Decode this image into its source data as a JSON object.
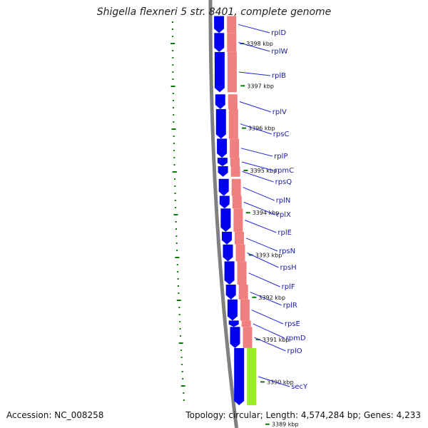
{
  "title": "Shigella flexneri 5 str. 8401, complete genome",
  "footer": {
    "accession": "Accession: NC_008258",
    "summary": "Topology: circular; Length: 4,574,284 bp; Genes: 4,233"
  },
  "colors": {
    "cds": "#0000ee",
    "gene_bar": "#f08080",
    "gene_bar_highlight": "#99ee22",
    "backbone": "#808080",
    "tick": "#0a7a0a",
    "label": "#1a1aa8",
    "leader": "#2222dd"
  },
  "ticks": [
    {
      "label": "3398 kbp",
      "kbp": 3398
    },
    {
      "label": "3397 kbp",
      "kbp": 3397
    },
    {
      "label": "3396 kbp",
      "kbp": 3396
    },
    {
      "label": "3395 kbp",
      "kbp": 3395
    },
    {
      "label": "3394 kbp",
      "kbp": 3394
    },
    {
      "label": "3393 kbp",
      "kbp": 3393
    },
    {
      "label": "3392 kbp",
      "kbp": 3392
    },
    {
      "label": "3391 kbp",
      "kbp": 3391
    },
    {
      "label": "3390 kbp",
      "kbp": 3390
    },
    {
      "label": "3389 kbp",
      "kbp": 3389
    }
  ],
  "genes": [
    {
      "name": "rplD",
      "start_kbp": 3398.65,
      "end_kbp": 3398.25
    },
    {
      "name": "rplW",
      "start_kbp": 3398.25,
      "end_kbp": 3397.8
    },
    {
      "name": "rplB",
      "start_kbp": 3397.8,
      "end_kbp": 3396.85
    },
    {
      "name": "rplV",
      "start_kbp": 3396.8,
      "end_kbp": 3396.45
    },
    {
      "name": "rpsC",
      "start_kbp": 3396.45,
      "end_kbp": 3395.75
    },
    {
      "name": "rplP",
      "start_kbp": 3395.75,
      "end_kbp": 3395.3
    },
    {
      "name": "rpmC",
      "start_kbp": 3395.3,
      "end_kbp": 3395.1
    },
    {
      "name": "rpsQ",
      "start_kbp": 3395.1,
      "end_kbp": 3394.85
    },
    {
      "name": "rplN",
      "start_kbp": 3394.8,
      "end_kbp": 3394.4
    },
    {
      "name": "rplX",
      "start_kbp": 3394.4,
      "end_kbp": 3394.1
    },
    {
      "name": "rplE",
      "start_kbp": 3394.1,
      "end_kbp": 3393.55
    },
    {
      "name": "rpsN",
      "start_kbp": 3393.55,
      "end_kbp": 3393.25
    },
    {
      "name": "rpsH",
      "start_kbp": 3393.25,
      "end_kbp": 3392.85
    },
    {
      "name": "rplF",
      "start_kbp": 3392.85,
      "end_kbp": 3392.3
    },
    {
      "name": "rplR",
      "start_kbp": 3392.3,
      "end_kbp": 3391.95
    },
    {
      "name": "rpsE",
      "start_kbp": 3391.95,
      "end_kbp": 3391.45
    },
    {
      "name": "rpmD",
      "start_kbp": 3391.45,
      "end_kbp": 3391.3
    },
    {
      "name": "rplO",
      "start_kbp": 3391.3,
      "end_kbp": 3390.8
    },
    {
      "name": "secY",
      "start_kbp": 3390.8,
      "end_kbp": 3389.45,
      "highlight": true
    }
  ]
}
